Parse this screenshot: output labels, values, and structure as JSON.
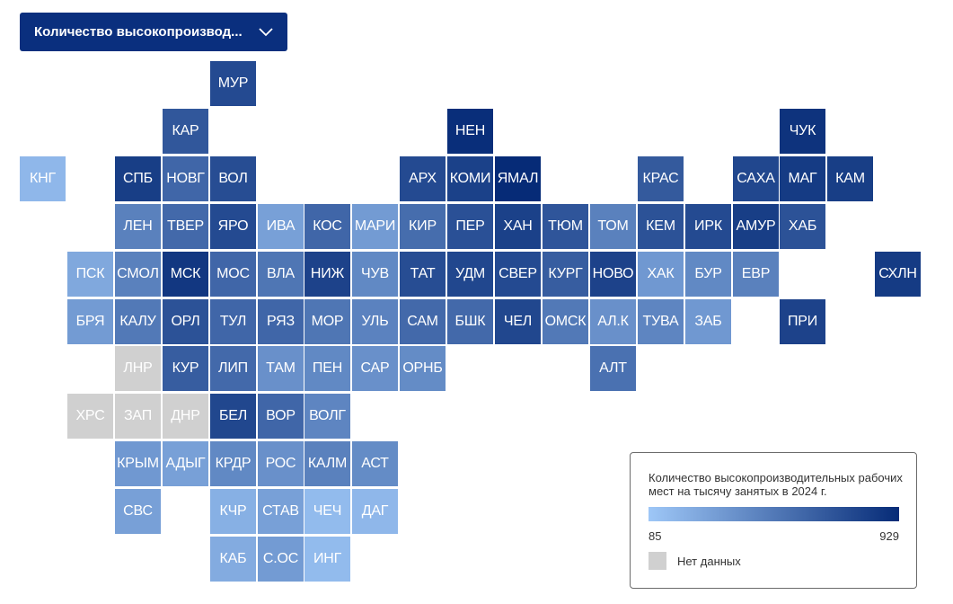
{
  "dropdown": {
    "label": "Количество высокопроизвод...",
    "icon": "chevron-down-icon"
  },
  "legend": {
    "title": "Количество высокопроизводительных рабочих мест на тысячу занятых в 2024 г.",
    "min": "85",
    "max": "929",
    "no_data_label": "Нет данных",
    "color_low": "#9ec7f7",
    "color_high": "#062b77",
    "no_data_color": "#d0d0d0"
  },
  "tiles": [
    {
      "label": "МУР",
      "col": 4,
      "row": 0,
      "level": 0.8
    },
    {
      "label": "КАР",
      "col": 3,
      "row": 1,
      "level": 0.72
    },
    {
      "label": "НЕН",
      "col": 9,
      "row": 1,
      "level": 0.98
    },
    {
      "label": "ЧУК",
      "col": 16,
      "row": 1,
      "level": 0.95
    },
    {
      "label": "КНГ",
      "col": 0,
      "row": 2,
      "level": 0.1
    },
    {
      "label": "СПБ",
      "col": 2,
      "row": 2,
      "level": 0.88
    },
    {
      "label": "НОВГ",
      "col": 3,
      "row": 2,
      "level": 0.62
    },
    {
      "label": "ВОЛ",
      "col": 4,
      "row": 2,
      "level": 0.78
    },
    {
      "label": "АРХ",
      "col": 8,
      "row": 2,
      "level": 0.8
    },
    {
      "label": "КОМИ",
      "col": 9,
      "row": 2,
      "level": 0.86
    },
    {
      "label": "ЯМАЛ",
      "col": 10,
      "row": 2,
      "level": 1.0
    },
    {
      "label": "КРАС",
      "col": 13,
      "row": 2,
      "level": 0.7
    },
    {
      "label": "САХА",
      "col": 15,
      "row": 2,
      "level": 0.82
    },
    {
      "label": "МАГ",
      "col": 16,
      "row": 2,
      "level": 0.9
    },
    {
      "label": "КАМ",
      "col": 17,
      "row": 2,
      "level": 0.88
    },
    {
      "label": "ЛЕН",
      "col": 2,
      "row": 3,
      "level": 0.45
    },
    {
      "label": "ТВЕР",
      "col": 3,
      "row": 3,
      "level": 0.6
    },
    {
      "label": "ЯРО",
      "col": 4,
      "row": 3,
      "level": 0.8
    },
    {
      "label": "ИВА",
      "col": 5,
      "row": 3,
      "level": 0.25
    },
    {
      "label": "КОС",
      "col": 6,
      "row": 3,
      "level": 0.62
    },
    {
      "label": "МАРИ",
      "col": 7,
      "row": 3,
      "level": 0.28
    },
    {
      "label": "КИР",
      "col": 8,
      "row": 3,
      "level": 0.58
    },
    {
      "label": "ПЕР",
      "col": 9,
      "row": 3,
      "level": 0.76
    },
    {
      "label": "ХАН",
      "col": 10,
      "row": 3,
      "level": 0.86
    },
    {
      "label": "ТЮМ",
      "col": 11,
      "row": 3,
      "level": 0.73
    },
    {
      "label": "ТОМ",
      "col": 12,
      "row": 3,
      "level": 0.45
    },
    {
      "label": "КЕМ",
      "col": 13,
      "row": 3,
      "level": 0.75
    },
    {
      "label": "ИРК",
      "col": 14,
      "row": 3,
      "level": 0.8
    },
    {
      "label": "АМУР",
      "col": 15,
      "row": 3,
      "level": 0.88
    },
    {
      "label": "ХАБ",
      "col": 16,
      "row": 3,
      "level": 0.75
    },
    {
      "label": "ПСК",
      "col": 1,
      "row": 4,
      "level": 0.2
    },
    {
      "label": "СМОЛ",
      "col": 2,
      "row": 4,
      "level": 0.45
    },
    {
      "label": "МСК",
      "col": 3,
      "row": 4,
      "level": 0.92
    },
    {
      "label": "МОС",
      "col": 4,
      "row": 4,
      "level": 0.62
    },
    {
      "label": "ВЛА",
      "col": 5,
      "row": 4,
      "level": 0.52
    },
    {
      "label": "НИЖ",
      "col": 6,
      "row": 4,
      "level": 0.85
    },
    {
      "label": "ЧУВ",
      "col": 7,
      "row": 4,
      "level": 0.4
    },
    {
      "label": "ТАТ",
      "col": 8,
      "row": 4,
      "level": 0.78
    },
    {
      "label": "УДМ",
      "col": 9,
      "row": 4,
      "level": 0.82
    },
    {
      "label": "СВЕР",
      "col": 10,
      "row": 4,
      "level": 0.8
    },
    {
      "label": "КУРГ",
      "col": 11,
      "row": 4,
      "level": 0.68
    },
    {
      "label": "НОВО",
      "col": 12,
      "row": 4,
      "level": 0.85
    },
    {
      "label": "ХАК",
      "col": 13,
      "row": 4,
      "level": 0.3
    },
    {
      "label": "БУР",
      "col": 14,
      "row": 4,
      "level": 0.4
    },
    {
      "label": "ЕВР",
      "col": 15,
      "row": 4,
      "level": 0.45
    },
    {
      "label": "СХЛН",
      "col": 18,
      "row": 4,
      "level": 0.9
    },
    {
      "label": "БРЯ",
      "col": 1,
      "row": 5,
      "level": 0.28
    },
    {
      "label": "КАЛУ",
      "col": 2,
      "row": 5,
      "level": 0.5
    },
    {
      "label": "ОРЛ",
      "col": 3,
      "row": 5,
      "level": 0.75
    },
    {
      "label": "ТУЛ",
      "col": 4,
      "row": 5,
      "level": 0.62
    },
    {
      "label": "РЯЗ",
      "col": 5,
      "row": 5,
      "level": 0.62
    },
    {
      "label": "МОР",
      "col": 6,
      "row": 5,
      "level": 0.52
    },
    {
      "label": "УЛЬ",
      "col": 7,
      "row": 5,
      "level": 0.44
    },
    {
      "label": "САМ",
      "col": 8,
      "row": 5,
      "level": 0.6
    },
    {
      "label": "БШК",
      "col": 9,
      "row": 5,
      "level": 0.6
    },
    {
      "label": "ЧЕЛ",
      "col": 10,
      "row": 5,
      "level": 0.82
    },
    {
      "label": "ОМСК",
      "col": 11,
      "row": 5,
      "level": 0.5
    },
    {
      "label": "АЛ.К",
      "col": 12,
      "row": 5,
      "level": 0.35
    },
    {
      "label": "ТУВА",
      "col": 13,
      "row": 5,
      "level": 0.42
    },
    {
      "label": "ЗАБ",
      "col": 14,
      "row": 5,
      "level": 0.3
    },
    {
      "label": "ПРИ",
      "col": 16,
      "row": 5,
      "level": 0.85
    },
    {
      "label": "ЛНР",
      "col": 2,
      "row": 6,
      "level": null
    },
    {
      "label": "КУР",
      "col": 3,
      "row": 6,
      "level": 0.68
    },
    {
      "label": "ЛИП",
      "col": 4,
      "row": 6,
      "level": 0.6
    },
    {
      "label": "ТАМ",
      "col": 5,
      "row": 6,
      "level": 0.35
    },
    {
      "label": "ПЕН",
      "col": 6,
      "row": 6,
      "level": 0.4
    },
    {
      "label": "САР",
      "col": 7,
      "row": 6,
      "level": 0.35
    },
    {
      "label": "ОРНБ",
      "col": 8,
      "row": 6,
      "level": 0.38
    },
    {
      "label": "АЛТ",
      "col": 12,
      "row": 6,
      "level": 0.55
    },
    {
      "label": "ХРС",
      "col": 1,
      "row": 7,
      "level": null
    },
    {
      "label": "ЗАП",
      "col": 2,
      "row": 7,
      "level": null
    },
    {
      "label": "ДНР",
      "col": 3,
      "row": 7,
      "level": null
    },
    {
      "label": "БЕЛ",
      "col": 4,
      "row": 7,
      "level": 0.82
    },
    {
      "label": "ВОР",
      "col": 5,
      "row": 7,
      "level": 0.62
    },
    {
      "label": "ВОЛГ",
      "col": 6,
      "row": 7,
      "level": 0.42
    },
    {
      "label": "КРЫМ",
      "col": 2,
      "row": 8,
      "level": 0.3
    },
    {
      "label": "АДЫГ",
      "col": 3,
      "row": 8,
      "level": 0.25
    },
    {
      "label": "КРДР",
      "col": 4,
      "row": 8,
      "level": 0.4
    },
    {
      "label": "РОС",
      "col": 5,
      "row": 8,
      "level": 0.35
    },
    {
      "label": "КАЛМ",
      "col": 6,
      "row": 8,
      "level": 0.45
    },
    {
      "label": "АСТ",
      "col": 7,
      "row": 8,
      "level": 0.38
    },
    {
      "label": "СВС",
      "col": 2,
      "row": 9,
      "level": 0.25
    },
    {
      "label": "КЧР",
      "col": 4,
      "row": 9,
      "level": 0.15
    },
    {
      "label": "СТАВ",
      "col": 5,
      "row": 9,
      "level": 0.25
    },
    {
      "label": "ЧЕЧ",
      "col": 6,
      "row": 9,
      "level": 0.08
    },
    {
      "label": "ДАГ",
      "col": 7,
      "row": 9,
      "level": 0.1
    },
    {
      "label": "КАБ",
      "col": 4,
      "row": 10,
      "level": 0.18
    },
    {
      "label": "С.ОС",
      "col": 5,
      "row": 10,
      "level": 0.28
    },
    {
      "label": "ИНГ",
      "col": 6,
      "row": 10,
      "level": 0.08
    }
  ]
}
